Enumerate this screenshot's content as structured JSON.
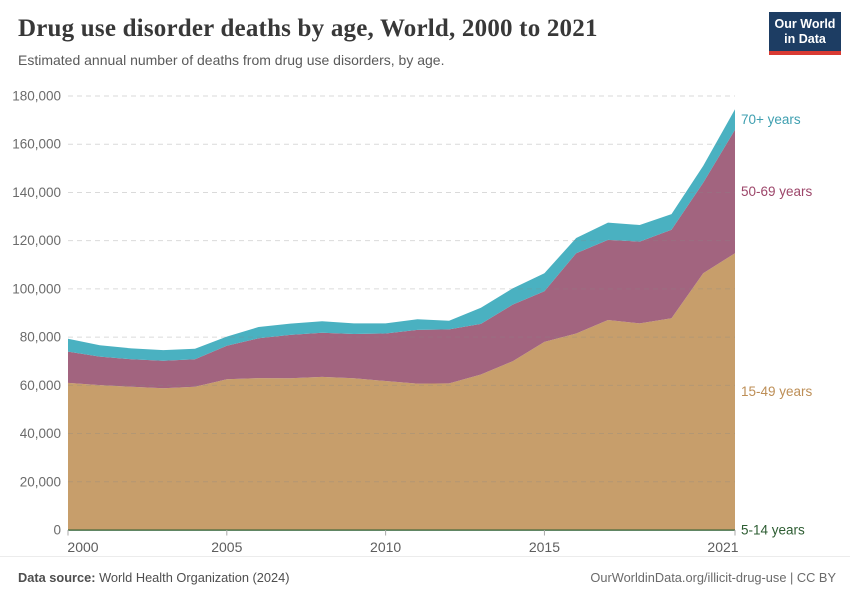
{
  "header": {
    "title": "Drug use disorder deaths by age, World, 2000 to 2021",
    "subtitle": "Estimated annual number of deaths from drug use disorders, by age."
  },
  "logo": {
    "line1": "Our World",
    "line2": "in Data",
    "bg_color": "#1d3d63",
    "bar_color": "#d93a33"
  },
  "chart_data": {
    "type": "area",
    "stacked": true,
    "title": "Drug use disorder deaths by age, World, 2000 to 2021",
    "xlabel": "",
    "ylabel": "",
    "grid": "dashed",
    "legend_position": "right-of-plot",
    "xlim": [
      2000,
      2021
    ],
    "ylim": [
      0,
      180000
    ],
    "x": [
      2000,
      2001,
      2002,
      2003,
      2004,
      2005,
      2006,
      2007,
      2008,
      2009,
      2010,
      2011,
      2012,
      2013,
      2014,
      2015,
      2016,
      2017,
      2018,
      2019,
      2020,
      2021
    ],
    "x_ticks": [
      2000,
      2005,
      2010,
      2015,
      2021
    ],
    "y_ticks": [
      0,
      20000,
      40000,
      60000,
      80000,
      100000,
      120000,
      140000,
      160000,
      180000
    ],
    "series": [
      {
        "name": "5-14 years",
        "color": "#2c5e30",
        "label_color": "#2c5c31",
        "values": [
          200,
          200,
          200,
          200,
          200,
          200,
          200,
          200,
          200,
          200,
          200,
          200,
          200,
          200,
          200,
          200,
          200,
          200,
          200,
          200,
          200,
          200
        ]
      },
      {
        "name": "15-49 years",
        "color": "#c79e6b",
        "label_color": "#bd8e56",
        "values": [
          60800,
          59900,
          59200,
          58600,
          59200,
          62300,
          62800,
          62700,
          63300,
          62700,
          61600,
          60500,
          60600,
          64300,
          69800,
          77800,
          81300,
          86900,
          85500,
          87600,
          106300,
          114600
        ]
      },
      {
        "name": "50-69 years",
        "color": "#a2647f",
        "label_color": "#9c4569",
        "values": [
          13000,
          11800,
          11400,
          11400,
          11400,
          13900,
          16500,
          18000,
          18300,
          18400,
          19700,
          22300,
          22400,
          21000,
          23500,
          21000,
          33300,
          33200,
          33900,
          36700,
          37500,
          51200
        ]
      },
      {
        "name": "70+ years",
        "color": "#4ab1c1",
        "label_color": "#3e9fb0",
        "values": [
          5300,
          4700,
          4500,
          4400,
          4400,
          3800,
          4700,
          4700,
          4800,
          4400,
          4200,
          4400,
          3600,
          6700,
          6700,
          7500,
          6300,
          7200,
          6900,
          6500,
          7000,
          8500
        ]
      }
    ]
  },
  "axis_style": {
    "tick_label_color": "#6b6b6b",
    "x_label_color": "#5d5d5d",
    "gridline_color": "#888888"
  },
  "footer": {
    "datasource_label": "Data source:",
    "datasource_value": " World Health Organization (2024)",
    "credit": "OurWorldinData.org/illicit-drug-use | CC BY"
  }
}
